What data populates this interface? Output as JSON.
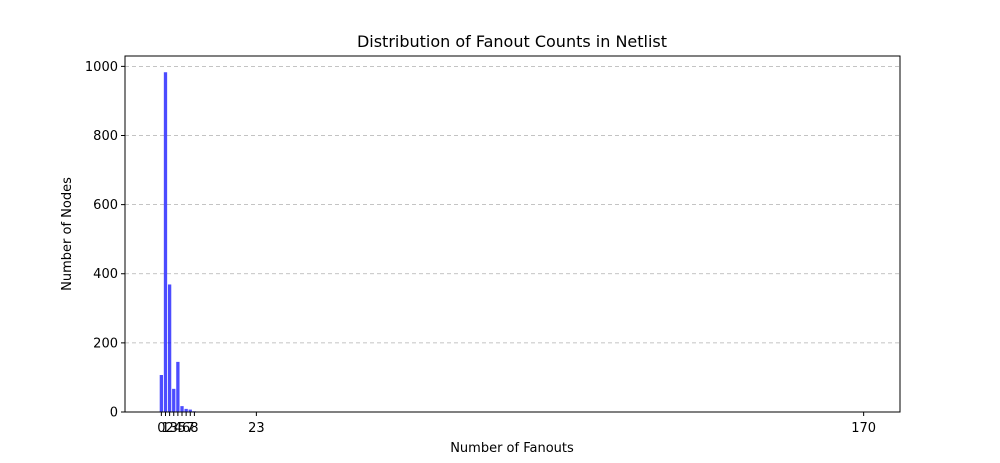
{
  "chart_data": {
    "type": "bar",
    "title": "Distribution of Fanout Counts in Netlist",
    "xlabel": "Number of Fanouts",
    "ylabel": "Number of Nodes",
    "x": [
      0,
      1,
      2,
      3,
      4,
      5,
      6,
      7,
      8,
      23,
      170
    ],
    "values": [
      107,
      983,
      369,
      67,
      145,
      17,
      9,
      7,
      2,
      1,
      1
    ],
    "x_tick_labels": [
      "0",
      "1",
      "2",
      "3",
      "4",
      "5",
      "6",
      "7",
      "8",
      "23",
      "170"
    ],
    "y_ticks": [
      0,
      200,
      400,
      600,
      800,
      1000
    ],
    "xlim": [
      -8.8,
      178.8
    ],
    "ylim": [
      0,
      1030
    ],
    "bar_color": "#0000ff",
    "bar_opacity": 0.7,
    "grid": "y-dashed",
    "legend": false
  }
}
